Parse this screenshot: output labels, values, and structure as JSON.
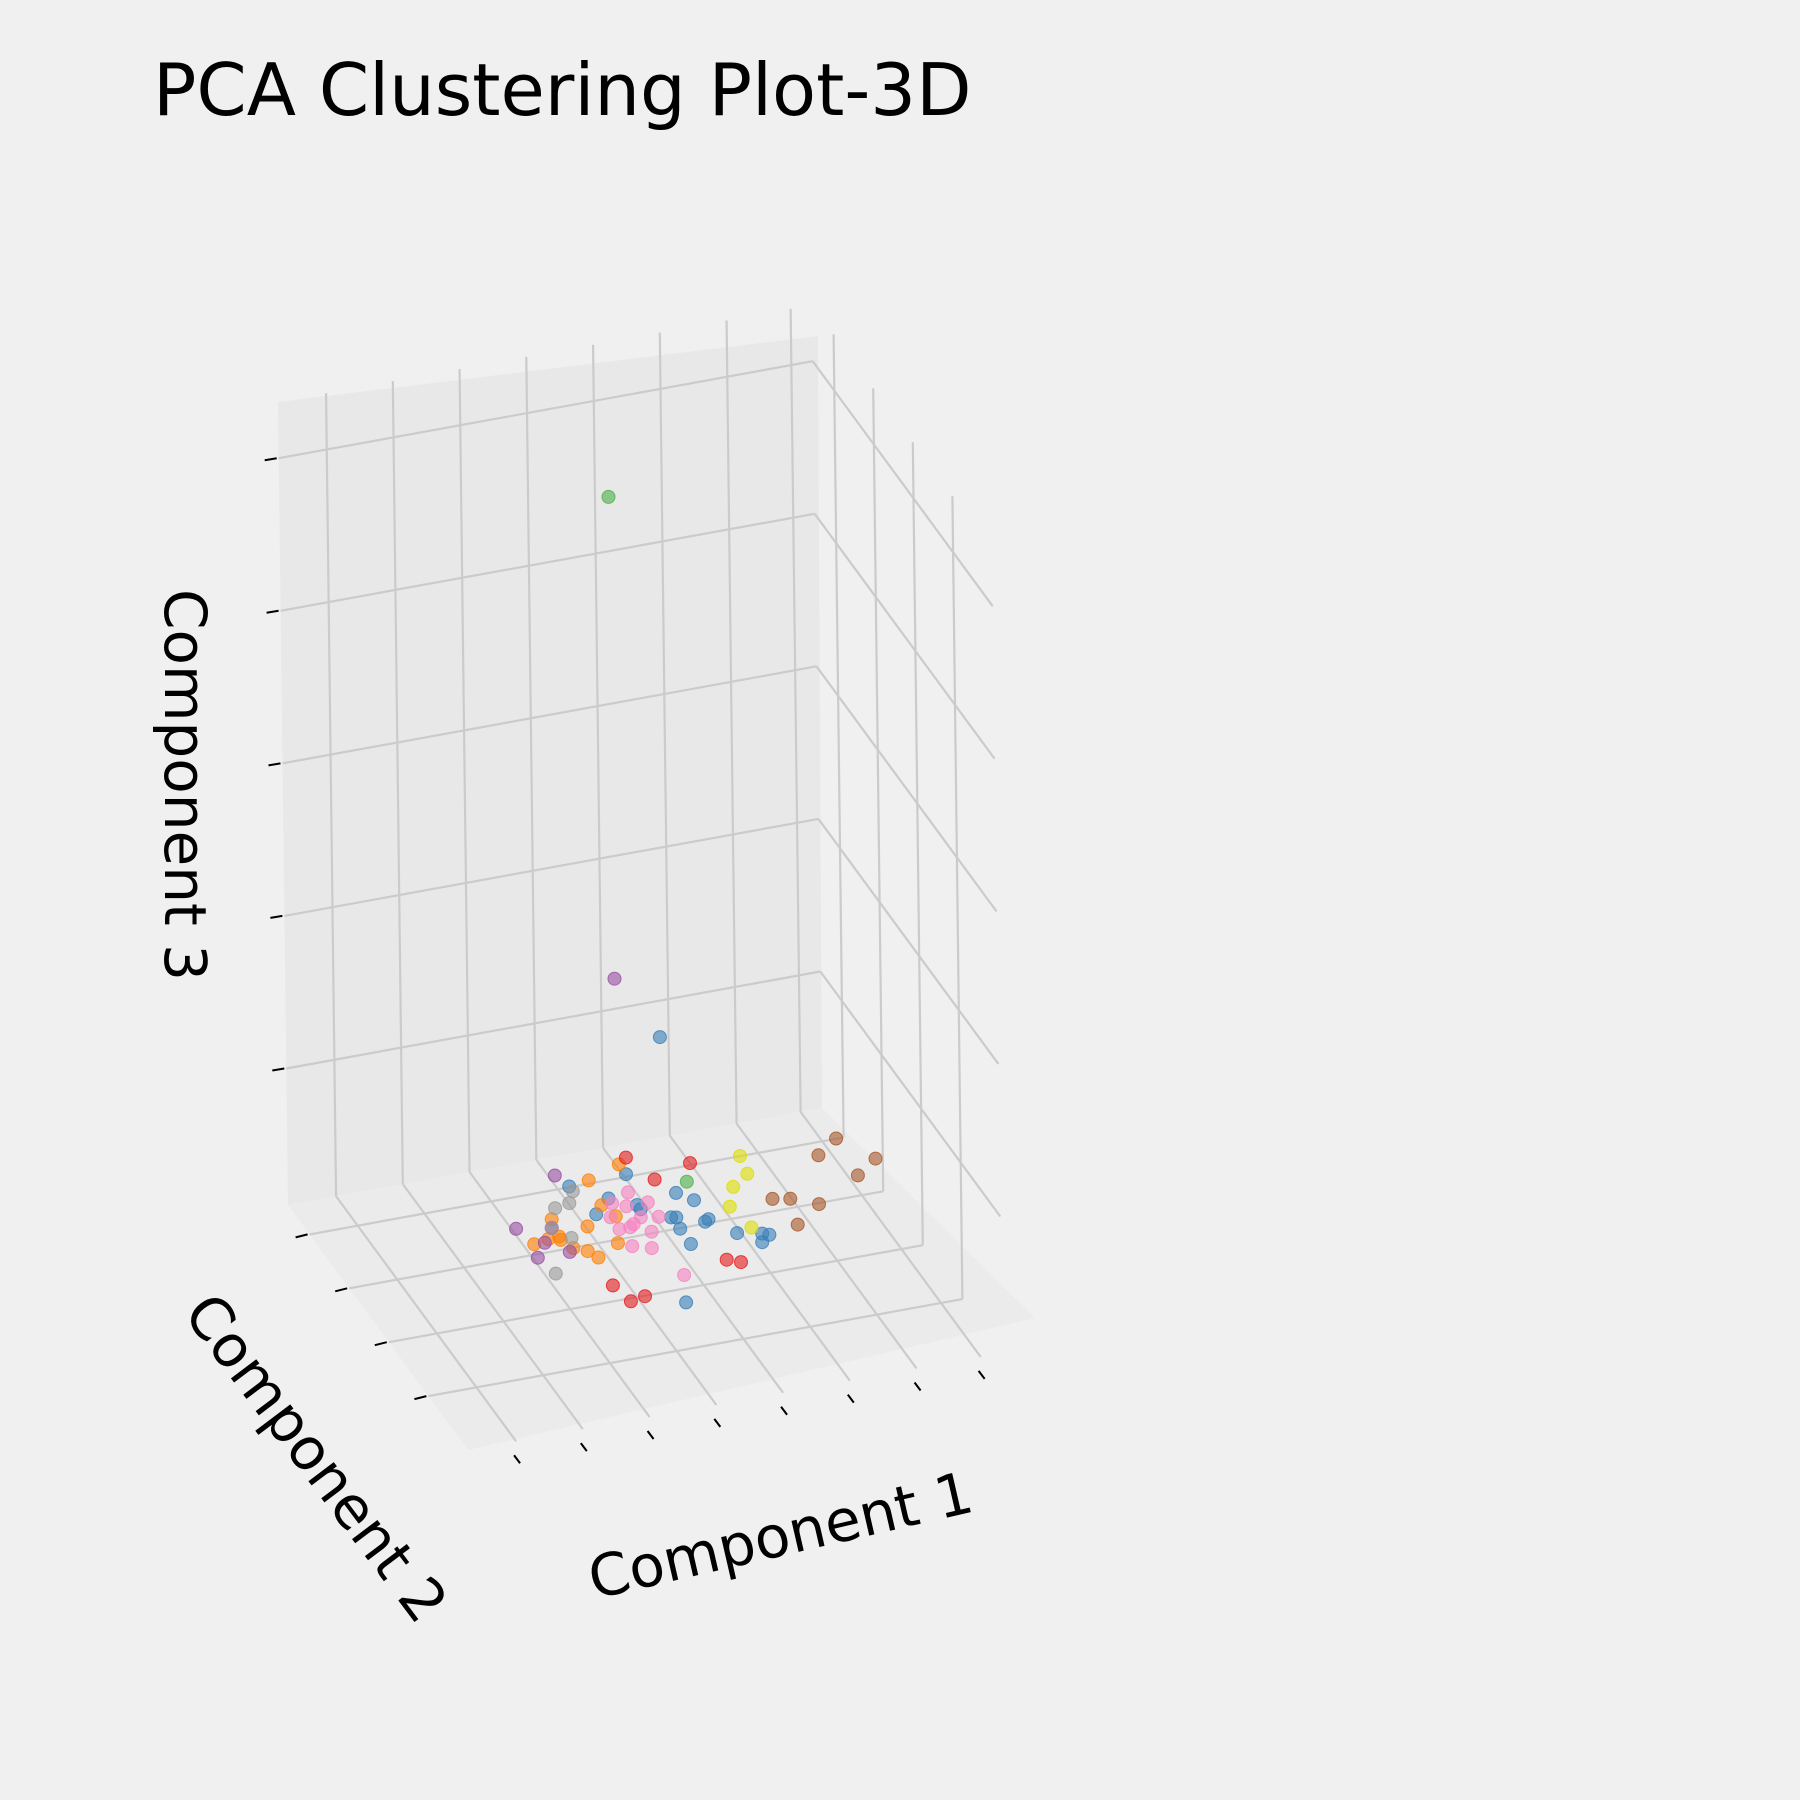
{
  "chart_data": {
    "type": "scatter",
    "projection": "3d",
    "title": "PCA Clustering Plot-3D",
    "xlabel": "Component 1",
    "ylabel": "Component 2",
    "zlabel": "Component 3",
    "tick_labels_shown": false,
    "grid": true,
    "series": [
      {
        "color": "#377eb8",
        "points": [
          [
            0.55,
            0.55,
            0.28
          ],
          [
            0.5,
            0.6,
            0.1
          ],
          [
            0.45,
            0.62,
            0.05
          ],
          [
            0.6,
            0.52,
            0.08
          ],
          [
            0.62,
            0.5,
            0.06
          ],
          [
            0.58,
            0.48,
            0.04
          ],
          [
            0.52,
            0.58,
            0.06
          ],
          [
            0.66,
            0.46,
            0.05
          ],
          [
            0.7,
            0.44,
            0.04
          ],
          [
            0.56,
            0.5,
            0.1
          ],
          [
            0.48,
            0.64,
            0.06
          ],
          [
            0.64,
            0.58,
            0.03
          ],
          [
            0.6,
            0.6,
            0.02
          ],
          [
            0.54,
            0.44,
            0.09
          ],
          [
            0.72,
            0.5,
            0.03
          ],
          [
            0.53,
            0.36,
            0.01
          ],
          [
            0.42,
            0.68,
            0.07
          ],
          [
            0.74,
            0.52,
            0.02
          ],
          [
            0.5,
            0.54,
            0.08
          ],
          [
            0.57,
            0.56,
            0.05
          ]
        ]
      },
      {
        "color": "#ff7f00",
        "points": [
          [
            0.44,
            0.64,
            0.03
          ],
          [
            0.4,
            0.6,
            0.02
          ],
          [
            0.38,
            0.66,
            0.04
          ],
          [
            0.46,
            0.62,
            0.06
          ],
          [
            0.42,
            0.58,
            0.02
          ],
          [
            0.36,
            0.62,
            0.03
          ],
          [
            0.48,
            0.6,
            0.05
          ],
          [
            0.45,
            0.66,
            0.08
          ],
          [
            0.4,
            0.68,
            0.01
          ],
          [
            0.43,
            0.55,
            0.02
          ],
          [
            0.5,
            0.64,
            0.1
          ],
          [
            0.37,
            0.58,
            0.04
          ],
          [
            0.34,
            0.64,
            0.02
          ],
          [
            0.47,
            0.56,
            0.03
          ]
        ]
      },
      {
        "color": "#4daf4a",
        "points": [
          [
            0.45,
            0.5,
            0.98
          ],
          [
            0.62,
            0.62,
            0.07
          ]
        ]
      },
      {
        "color": "#e41a1c",
        "points": [
          [
            0.52,
            0.66,
            0.1
          ],
          [
            0.44,
            0.4,
            0.01
          ],
          [
            0.46,
            0.38,
            0.02
          ],
          [
            0.6,
            0.54,
            0.12
          ],
          [
            0.56,
            0.62,
            0.08
          ],
          [
            0.66,
            0.44,
            0.02
          ],
          [
            0.42,
            0.44,
            0.02
          ],
          [
            0.62,
            0.4,
            0.04
          ]
        ]
      },
      {
        "color": "#984ea3",
        "points": [
          [
            0.45,
            0.5,
            0.38
          ],
          [
            0.3,
            0.62,
            0.05
          ],
          [
            0.34,
            0.58,
            0.04
          ],
          [
            0.32,
            0.56,
            0.03
          ],
          [
            0.36,
            0.6,
            0.05
          ],
          [
            0.38,
            0.56,
            0.03
          ],
          [
            0.4,
            0.7,
            0.08
          ]
        ]
      },
      {
        "color": "#a65628",
        "points": [
          [
            0.84,
            0.54,
            0.04
          ],
          [
            0.86,
            0.6,
            0.08
          ],
          [
            0.9,
            0.62,
            0.09
          ],
          [
            0.92,
            0.56,
            0.06
          ],
          [
            0.78,
            0.52,
            0.06
          ],
          [
            0.76,
            0.56,
            0.05
          ],
          [
            0.78,
            0.48,
            0.04
          ],
          [
            0.96,
            0.58,
            0.07
          ]
        ]
      },
      {
        "color": "#dddd00",
        "points": [
          [
            0.7,
            0.6,
            0.06
          ],
          [
            0.72,
            0.58,
            0.08
          ],
          [
            0.72,
            0.62,
            0.09
          ],
          [
            0.68,
            0.56,
            0.05
          ],
          [
            0.7,
            0.5,
            0.04
          ]
        ]
      },
      {
        "color": "#999999",
        "points": [
          [
            0.38,
            0.64,
            0.06
          ],
          [
            0.4,
            0.62,
            0.07
          ],
          [
            0.36,
            0.6,
            0.05
          ],
          [
            0.39,
            0.58,
            0.04
          ],
          [
            0.34,
            0.52,
            0.02
          ],
          [
            0.42,
            0.66,
            0.07
          ]
        ]
      },
      {
        "color": "#f781bf",
        "points": [
          [
            0.5,
            0.6,
            0.06
          ],
          [
            0.52,
            0.58,
            0.05
          ],
          [
            0.48,
            0.58,
            0.04
          ],
          [
            0.5,
            0.56,
            0.05
          ],
          [
            0.54,
            0.6,
            0.06
          ],
          [
            0.51,
            0.62,
            0.07
          ],
          [
            0.49,
            0.54,
            0.03
          ],
          [
            0.53,
            0.55,
            0.04
          ],
          [
            0.47,
            0.6,
            0.05
          ],
          [
            0.52,
            0.52,
            0.03
          ],
          [
            0.55,
            0.57,
            0.05
          ],
          [
            0.5,
            0.58,
            0.04
          ],
          [
            0.48,
            0.62,
            0.06
          ],
          [
            0.56,
            0.46,
            0.01
          ]
        ]
      }
    ]
  }
}
